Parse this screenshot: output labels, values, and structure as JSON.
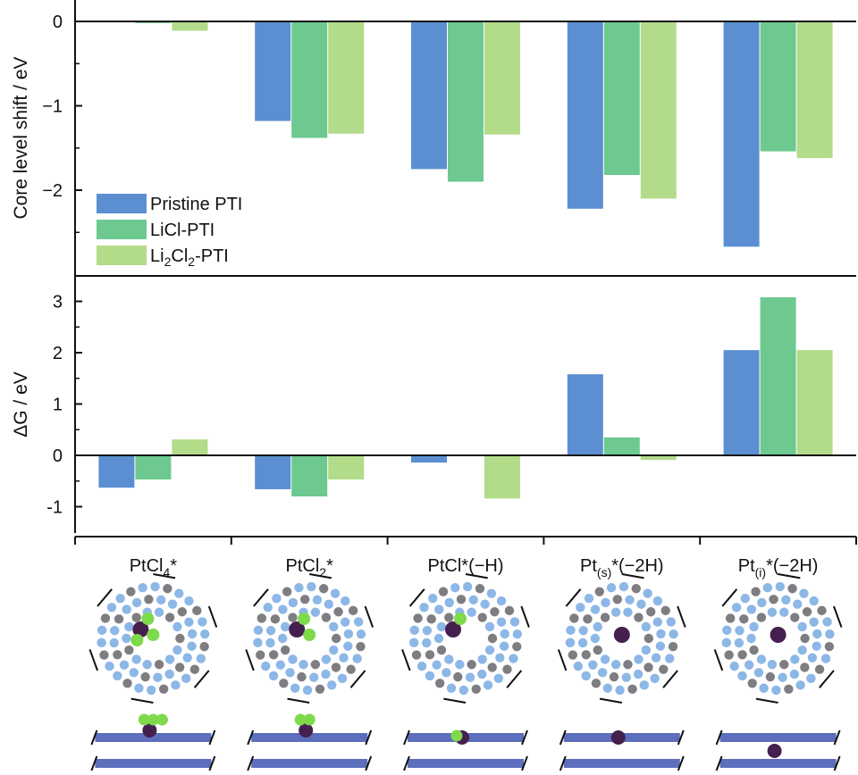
{
  "colors": {
    "pristine": "#5B8FD1",
    "licl": "#6DC990",
    "li2cl2": "#B2DB8A",
    "frame": "#111111",
    "structure_n": "#8CB7E6",
    "structure_c": "#7E7E82",
    "structure_pt": "#45204F",
    "structure_cl": "#7ED94B",
    "slab_blue": "#3F55B0"
  },
  "categories": [
    {
      "base": "PtCl",
      "sub": "4",
      "sub_kind": "sub",
      "suffix": "*",
      "structure": {
        "pt": true,
        "cl_count": 3,
        "side_pt": "top",
        "side_cl": 3
      }
    },
    {
      "base": "PtCl",
      "sub": "2",
      "sub_kind": "sub",
      "suffix": "*",
      "structure": {
        "pt": true,
        "cl_count": 2,
        "side_pt": "top",
        "side_cl": 2
      }
    },
    {
      "base": "PtCl",
      "sub": "",
      "sub_kind": "none",
      "suffix": "*(−H)",
      "structure": {
        "pt": true,
        "cl_count": 1,
        "side_pt": "in",
        "side_cl": 1
      }
    },
    {
      "base": "Pt",
      "sub": "(s)",
      "sub_kind": "sub",
      "suffix": "*(−2H)",
      "structure": {
        "pt": true,
        "cl_count": 0,
        "side_pt": "in",
        "side_cl": 0
      }
    },
    {
      "base": "Pt",
      "sub": "(i)",
      "sub_kind": "sub",
      "suffix": "*(−2H)",
      "structure": {
        "pt": true,
        "cl_count": 0,
        "side_pt": "below",
        "side_cl": 0
      }
    }
  ],
  "legend": [
    {
      "parts": [
        {
          "t": "Pristine PTI",
          "k": "n"
        }
      ],
      "color_key": "pristine"
    },
    {
      "parts": [
        {
          "t": "LiCl-PTI",
          "k": "n"
        }
      ],
      "color_key": "licl"
    },
    {
      "parts": [
        {
          "t": "Li",
          "k": "n"
        },
        {
          "t": "2",
          "k": "sub"
        },
        {
          "t": "Cl",
          "k": "n"
        },
        {
          "t": "2",
          "k": "sub"
        },
        {
          "t": "-PTI",
          "k": "n"
        }
      ],
      "color_key": "li2cl2"
    }
  ],
  "chart_data": [
    {
      "type": "bar",
      "ylabel": "Core level shift / eV",
      "ylim": [
        -2.95,
        0.05
      ],
      "yticks": [
        0,
        -1,
        -2
      ],
      "ytick_labels": [
        "0",
        "−1",
        "−2"
      ],
      "legend_position": "bottom-left",
      "series": [
        {
          "name": "Pristine PTI",
          "color_key": "pristine",
          "values": [
            null,
            -1.18,
            -1.75,
            -2.22,
            -2.67
          ]
        },
        {
          "name": "LiCl-PTI",
          "color_key": "licl",
          "values": [
            -0.02,
            -1.38,
            -1.9,
            -1.82,
            -1.54
          ]
        },
        {
          "name": "Li2Cl2-PTI",
          "color_key": "li2cl2",
          "values": [
            -0.11,
            -1.33,
            -1.34,
            -2.1,
            -1.62
          ]
        }
      ]
    },
    {
      "type": "bar",
      "ylabel": "ΔG / eV",
      "ylim": [
        -1.5,
        3.4
      ],
      "yticks": [
        3,
        2,
        1,
        0,
        -1
      ],
      "ytick_labels": [
        "3",
        "2",
        "1",
        "0",
        "-1"
      ],
      "series": [
        {
          "name": "Pristine PTI",
          "color_key": "pristine",
          "values": [
            -0.63,
            -0.66,
            -0.14,
            1.58,
            2.05
          ]
        },
        {
          "name": "LiCl-PTI",
          "color_key": "licl",
          "values": [
            -0.47,
            -0.8,
            null,
            0.35,
            3.08
          ]
        },
        {
          "name": "Li2Cl2-PTI",
          "color_key": "li2cl2",
          "values": [
            0.31,
            -0.47,
            -0.84,
            -0.09,
            2.05
          ]
        }
      ]
    }
  ]
}
